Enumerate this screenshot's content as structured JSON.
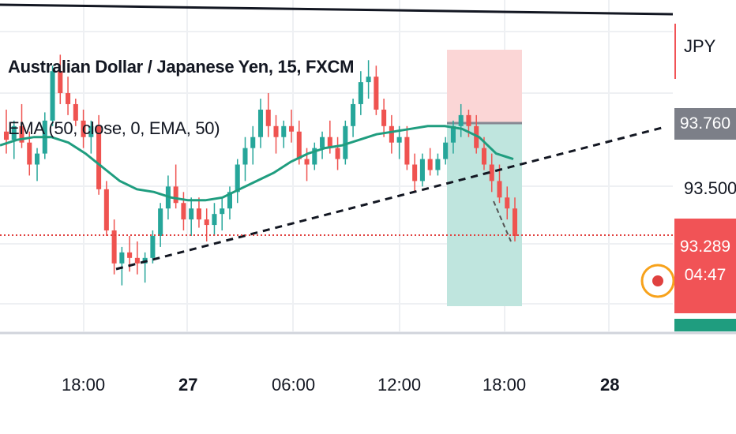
{
  "header": {
    "title": "Australian Dollar / Japanese Yen, 15, FXCM",
    "indicator": "EMA (50, close, 0, EMA, 50)"
  },
  "price_axis": {
    "currency": "JPY",
    "level_label": "93.500",
    "sl_label": "93.760",
    "last_price_label": "93.289",
    "countdown": "04:47"
  },
  "colors": {
    "up": "#26a69a",
    "down": "#ef5350",
    "ema": "#1f9d7f",
    "stop_zone": "#f9d2d2",
    "target_zone": "#b6e0d8",
    "last_price": "#f15356",
    "sl_tag": "#787b86",
    "alert_ring": "#f7a21b"
  },
  "chart_data": {
    "type": "candlestick",
    "title": "Australian Dollar / Japanese Yen, 15, FXCM",
    "indicator": "EMA (50, close, 0, EMA, 50)",
    "x_ticks": [
      "18:00",
      "27",
      "06:00",
      "12:00",
      "18:00",
      "28"
    ],
    "y_ticks": [
      "93.500"
    ],
    "last_price": 93.289,
    "stop_level": 93.76,
    "position": {
      "type": "short",
      "entry": 93.76,
      "stop": 93.99,
      "target": 93.08
    },
    "ema": [
      93.63,
      93.65,
      93.66,
      93.66,
      93.64,
      93.6,
      93.55,
      93.5,
      93.47,
      93.46,
      93.44,
      93.43,
      93.43,
      93.44,
      93.47,
      93.5,
      93.53,
      93.57,
      93.6,
      93.62,
      93.63,
      93.65,
      93.67,
      93.68,
      93.69,
      93.7,
      93.7,
      93.69,
      93.66,
      93.6,
      93.58
    ],
    "ohlc": [
      [
        93.68,
        93.76,
        93.6,
        93.65
      ],
      [
        93.65,
        93.72,
        93.58,
        93.7
      ],
      [
        93.7,
        93.78,
        93.62,
        93.64
      ],
      [
        93.64,
        93.68,
        93.52,
        93.56
      ],
      [
        93.56,
        93.62,
        93.5,
        93.6
      ],
      [
        93.6,
        93.75,
        93.58,
        93.72
      ],
      [
        93.72,
        93.92,
        93.7,
        93.9
      ],
      [
        93.9,
        93.96,
        93.78,
        93.82
      ],
      [
        93.82,
        93.88,
        93.74,
        93.78
      ],
      [
        93.78,
        93.8,
        93.7,
        93.72
      ],
      [
        93.72,
        93.76,
        93.62,
        93.66
      ],
      [
        93.66,
        93.72,
        93.6,
        93.7
      ],
      [
        93.7,
        93.74,
        93.45,
        93.47
      ],
      [
        93.47,
        93.5,
        93.3,
        93.32
      ],
      [
        93.32,
        93.36,
        93.16,
        93.2
      ],
      [
        93.2,
        93.26,
        93.12,
        93.24
      ],
      [
        93.24,
        93.3,
        93.17,
        93.22
      ],
      [
        93.22,
        93.28,
        93.16,
        93.2
      ],
      [
        93.2,
        93.24,
        93.13,
        93.22
      ],
      [
        93.22,
        93.32,
        93.2,
        93.3
      ],
      [
        93.3,
        93.42,
        93.26,
        93.4
      ],
      [
        93.4,
        93.52,
        93.36,
        93.48
      ],
      [
        93.48,
        93.56,
        93.4,
        93.42
      ],
      [
        93.42,
        93.46,
        93.32,
        93.36
      ],
      [
        93.36,
        93.44,
        93.3,
        93.4
      ],
      [
        93.4,
        93.44,
        93.33,
        93.36
      ],
      [
        93.36,
        93.4,
        93.28,
        93.34
      ],
      [
        93.34,
        93.42,
        93.3,
        93.38
      ],
      [
        93.38,
        93.44,
        93.32,
        93.4
      ],
      [
        93.4,
        93.48,
        93.36,
        93.46
      ],
      [
        93.46,
        93.58,
        93.42,
        93.56
      ],
      [
        93.56,
        93.66,
        93.5,
        93.62
      ],
      [
        93.62,
        93.7,
        93.56,
        93.66
      ],
      [
        93.66,
        93.8,
        93.62,
        93.76
      ],
      [
        93.76,
        93.82,
        93.66,
        93.7
      ],
      [
        93.7,
        93.74,
        93.6,
        93.66
      ],
      [
        93.66,
        93.72,
        93.62,
        93.7
      ],
      [
        93.7,
        93.76,
        93.64,
        93.68
      ],
      [
        93.68,
        93.72,
        93.56,
        93.58
      ],
      [
        93.58,
        93.62,
        93.5,
        93.56
      ],
      [
        93.56,
        93.64,
        93.54,
        93.62
      ],
      [
        93.62,
        93.68,
        93.58,
        93.66
      ],
      [
        93.66,
        93.72,
        93.6,
        93.62
      ],
      [
        93.62,
        93.66,
        93.54,
        93.58
      ],
      [
        93.58,
        93.72,
        93.56,
        93.7
      ],
      [
        93.7,
        93.8,
        93.66,
        93.78
      ],
      [
        93.78,
        93.9,
        93.74,
        93.86
      ],
      [
        93.86,
        93.94,
        93.8,
        93.88
      ],
      [
        93.88,
        93.92,
        93.74,
        93.76
      ],
      [
        93.76,
        93.8,
        93.66,
        93.7
      ],
      [
        93.7,
        93.74,
        93.6,
        93.64
      ],
      [
        93.64,
        93.7,
        93.58,
        93.66
      ],
      [
        93.66,
        93.7,
        93.54,
        93.56
      ],
      [
        93.56,
        93.6,
        93.46,
        93.5
      ],
      [
        93.5,
        93.6,
        93.48,
        93.58
      ],
      [
        93.58,
        93.62,
        93.52,
        93.54
      ],
      [
        93.54,
        93.6,
        93.52,
        93.58
      ],
      [
        93.58,
        93.66,
        93.56,
        93.64
      ],
      [
        93.64,
        93.72,
        93.6,
        93.7
      ],
      [
        93.7,
        93.78,
        93.66,
        93.74
      ],
      [
        93.74,
        93.76,
        93.66,
        93.7
      ],
      [
        93.7,
        93.74,
        93.6,
        93.62
      ],
      [
        93.62,
        93.66,
        93.54,
        93.56
      ],
      [
        93.56,
        93.6,
        93.46,
        93.5
      ],
      [
        93.5,
        93.56,
        93.42,
        93.44
      ],
      [
        93.44,
        93.48,
        93.36,
        93.4
      ],
      [
        93.4,
        93.44,
        93.28,
        93.3
      ]
    ]
  }
}
